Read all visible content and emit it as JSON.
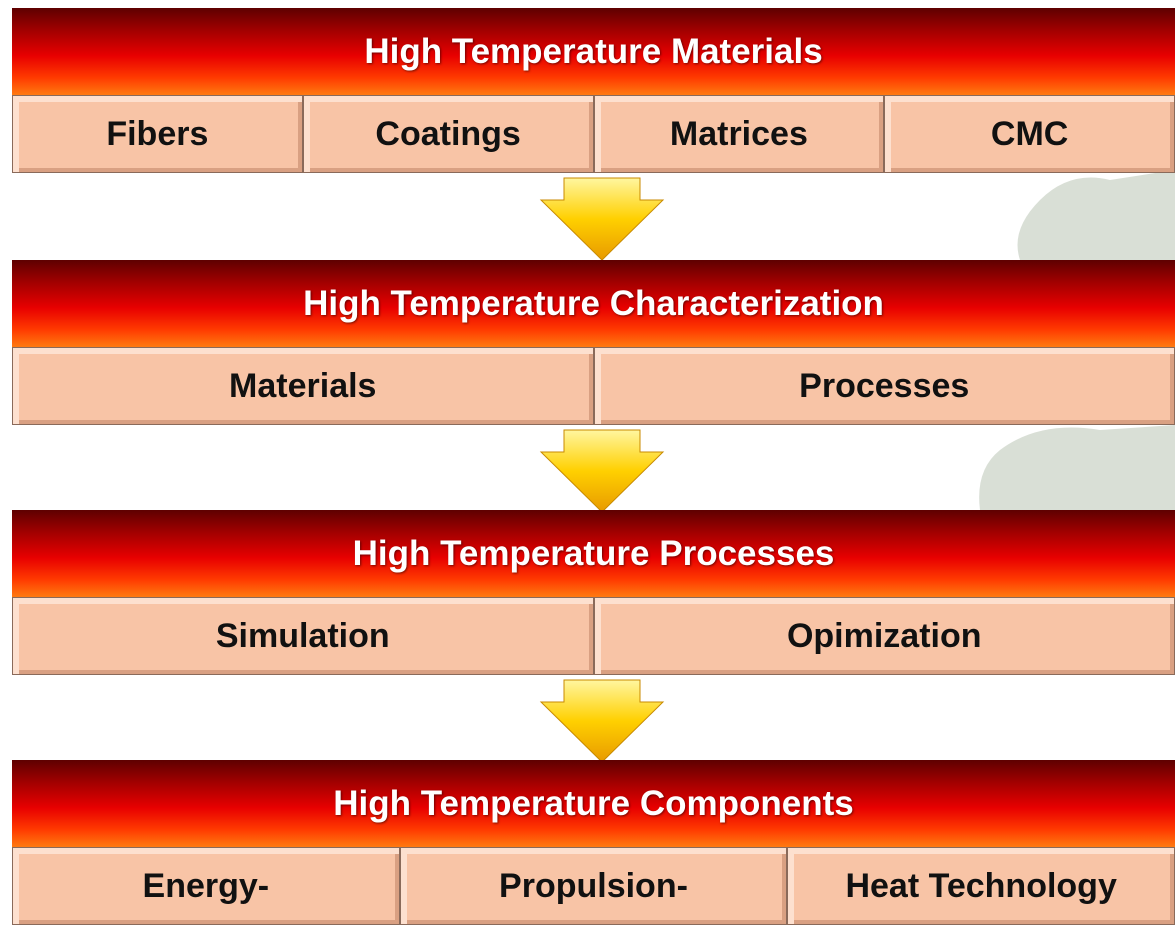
{
  "stages": [
    {
      "title": "High Temperature Materials",
      "items": [
        "Fibers",
        "Coatings",
        "Matrices",
        "CMC"
      ]
    },
    {
      "title": "High Temperature Characterization",
      "items": [
        "Materials",
        "Processes"
      ]
    },
    {
      "title": "High Temperature Processes",
      "items": [
        "Simulation",
        "Opimization"
      ]
    },
    {
      "title": "High Temperature Components",
      "items": [
        "Energy-",
        "Propulsion-",
        "Heat Technology"
      ]
    }
  ]
}
